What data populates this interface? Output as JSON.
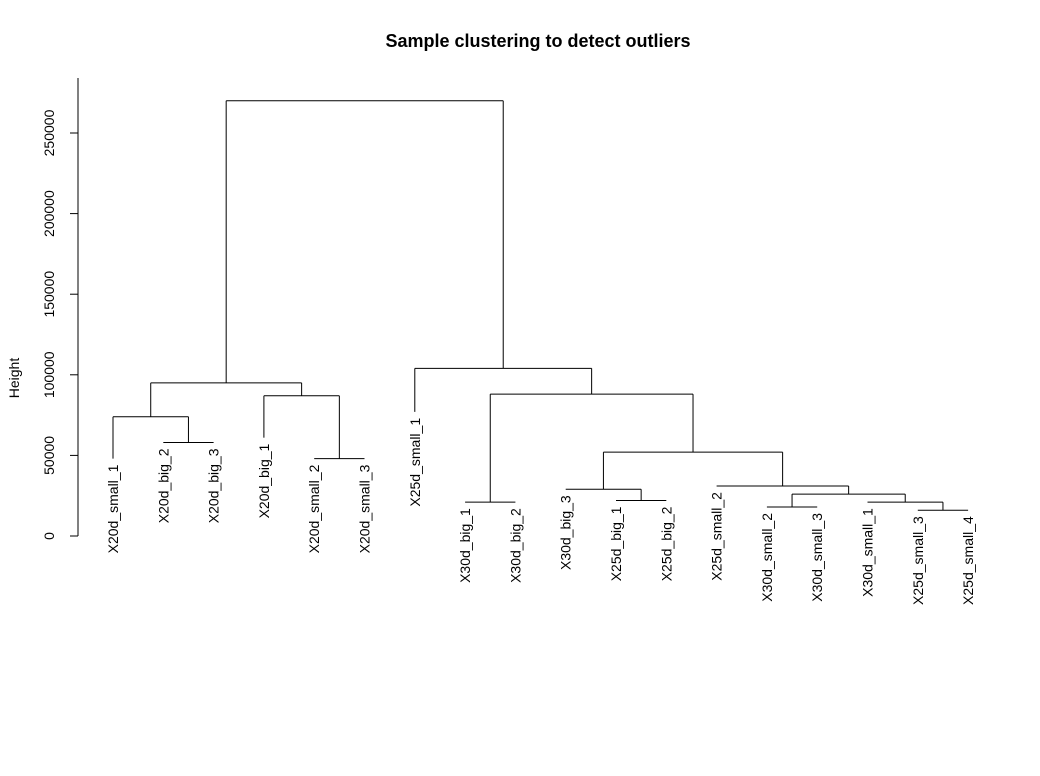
{
  "chart_data": {
    "type": "dendrogram",
    "title": "Sample clustering to detect outliers",
    "ylabel": "Height",
    "ylim": [
      0,
      270000
    ],
    "yticks": [
      0,
      50000,
      100000,
      150000,
      200000,
      250000
    ],
    "ytick_labels": [
      "0",
      "50000",
      "100000",
      "150000",
      "200000",
      "250000"
    ],
    "leaves": [
      "X20d_small_1",
      "X20d_big_2",
      "X20d_big_3",
      "X20d_big_1",
      "X20d_small_2",
      "X20d_small_3",
      "X25d_small_1",
      "X30d_big_1",
      "X30d_big_2",
      "X30d_big_3",
      "X25d_big_1",
      "X25d_big_2",
      "X25d_small_2",
      "X30d_small_2",
      "X30d_small_3",
      "X30d_small_1",
      "X25d_small_3",
      "X25d_small_4"
    ],
    "merges": [
      {
        "id": "m1",
        "left": "L1",
        "right": "L2",
        "height": 58000
      },
      {
        "id": "m2",
        "left": "L0",
        "right": "m1",
        "height": 74000
      },
      {
        "id": "m3",
        "left": "L4",
        "right": "L5",
        "height": 48000
      },
      {
        "id": "m4",
        "left": "L3",
        "right": "m3",
        "height": 87000
      },
      {
        "id": "m5",
        "left": "m2",
        "right": "m4",
        "height": 95000
      },
      {
        "id": "m6",
        "left": "L7",
        "right": "L8",
        "height": 21000
      },
      {
        "id": "m7",
        "left": "L10",
        "right": "L11",
        "height": 22000
      },
      {
        "id": "m8",
        "left": "L9",
        "right": "m7",
        "height": 29000
      },
      {
        "id": "m9",
        "left": "L13",
        "right": "L14",
        "height": 18000
      },
      {
        "id": "m10",
        "left": "L16",
        "right": "L17",
        "height": 16000
      },
      {
        "id": "m11",
        "left": "L15",
        "right": "m10",
        "height": 21000
      },
      {
        "id": "m12",
        "left": "m9",
        "right": "m11",
        "height": 26000
      },
      {
        "id": "m13",
        "left": "L12",
        "right": "m12",
        "height": 31000
      },
      {
        "id": "m14",
        "left": "m8",
        "right": "m13",
        "height": 52000
      },
      {
        "id": "m15",
        "left": "m6",
        "right": "m14",
        "height": 88000
      },
      {
        "id": "m16",
        "left": "L6",
        "right": "m15",
        "height": 104000
      },
      {
        "id": "m17",
        "left": "m5",
        "right": "m16",
        "height": 270000
      }
    ],
    "leaf_heights": [
      48000,
      58000,
      58000,
      61000,
      48000,
      48000,
      77000,
      21000,
      21000,
      29000,
      22000,
      22000,
      31000,
      18000,
      18000,
      21000,
      16000,
      16000
    ]
  }
}
